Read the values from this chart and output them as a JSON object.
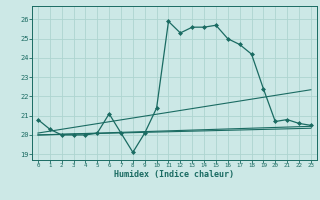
{
  "xlabel": "Humidex (Indice chaleur)",
  "bg_color": "#cce8e6",
  "line_color": "#1a6b62",
  "grid_color": "#aed4d0",
  "xlim": [
    -0.5,
    23.5
  ],
  "ylim": [
    18.7,
    26.7
  ],
  "yticks": [
    19,
    20,
    21,
    22,
    23,
    24,
    25,
    26
  ],
  "xticks": [
    0,
    1,
    2,
    3,
    4,
    5,
    6,
    7,
    8,
    9,
    10,
    11,
    12,
    13,
    14,
    15,
    16,
    17,
    18,
    19,
    20,
    21,
    22,
    23
  ],
  "main_x": [
    0,
    1,
    2,
    3,
    4,
    5,
    6,
    7,
    8,
    9,
    10,
    11,
    12,
    13,
    14,
    15,
    16,
    17,
    18,
    19,
    20,
    21,
    22,
    23
  ],
  "main_y": [
    20.8,
    20.3,
    20.0,
    20.0,
    20.0,
    20.1,
    21.1,
    20.1,
    19.1,
    20.1,
    21.4,
    25.9,
    25.3,
    25.6,
    25.6,
    25.7,
    25.0,
    24.7,
    24.2,
    22.4,
    20.7,
    20.8,
    20.6,
    20.5
  ],
  "trend_lines": [
    {
      "x": [
        0,
        23
      ],
      "y": [
        20.0,
        20.45
      ]
    },
    {
      "x": [
        0,
        23
      ],
      "y": [
        20.1,
        22.35
      ]
    },
    {
      "x": [
        0,
        23
      ],
      "y": [
        20.0,
        20.35
      ]
    }
  ]
}
